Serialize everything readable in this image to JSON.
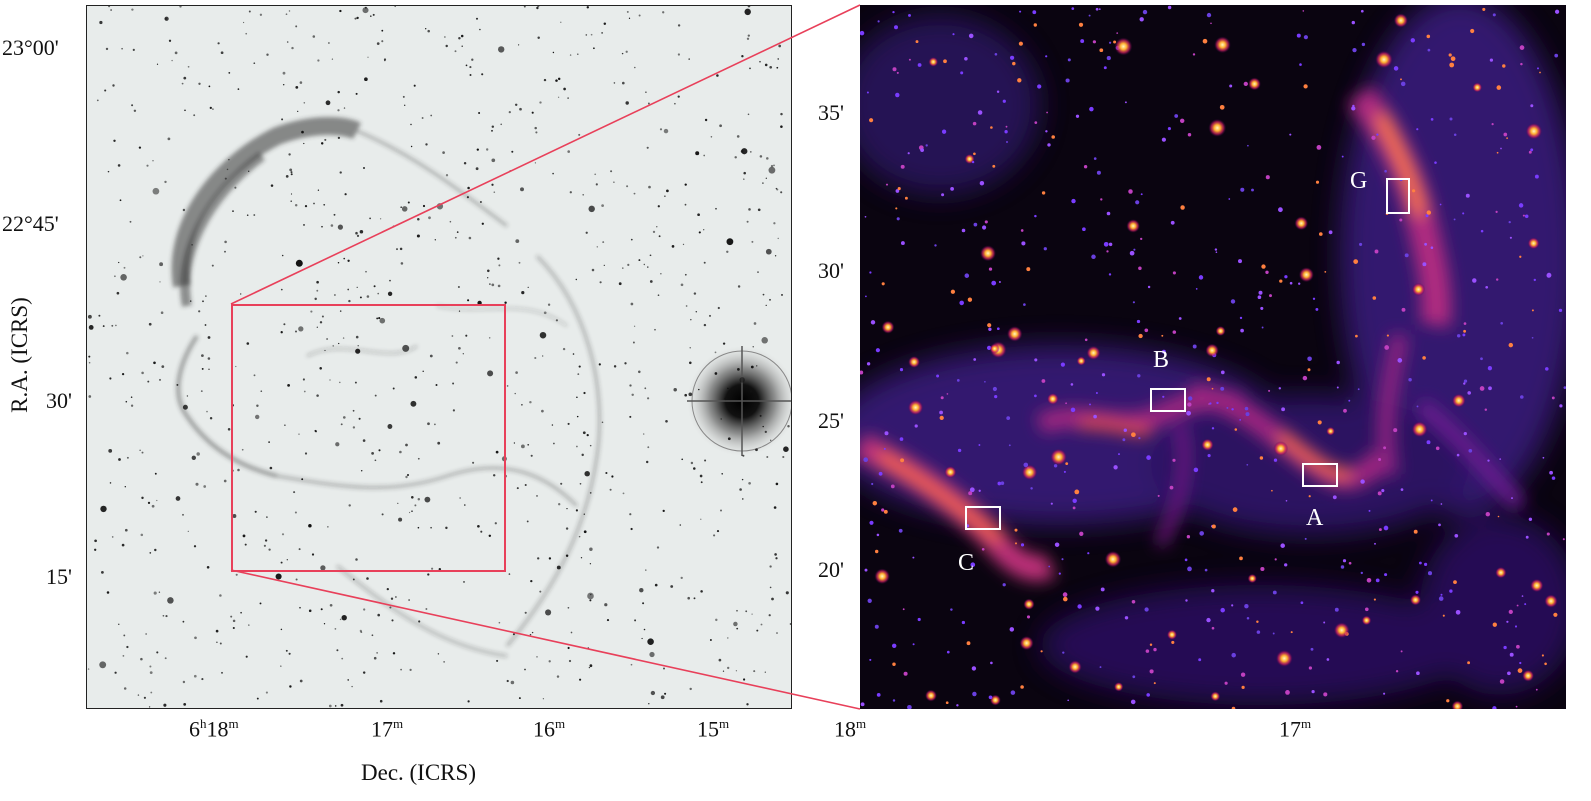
{
  "figure": {
    "left_panel": {
      "y_ticks": [
        "23°00'",
        "22°45'",
        "30'",
        "15'"
      ],
      "x_ticks": [
        {
          "main": "6",
          "sup1": "h",
          "main2": "18",
          "sup2": "m"
        },
        {
          "main": "17",
          "sup2": "m"
        },
        {
          "main": "16",
          "sup2": "m"
        },
        {
          "main": "15",
          "sup2": "m"
        }
      ],
      "x_title": "Dec. (ICRS)",
      "y_title": "R.A. (ICRS)"
    },
    "right_panel": {
      "y_ticks": [
        "35'",
        "30'",
        "25'",
        "20'"
      ],
      "x_ticks": [
        {
          "main": "18",
          "sup2": "m"
        },
        {
          "main": "17",
          "sup2": "m"
        }
      ],
      "regions": [
        {
          "label": "G"
        },
        {
          "label": "B"
        },
        {
          "label": "A"
        },
        {
          "label": "C"
        }
      ]
    },
    "colors": {
      "zoom_box": "#e8405a",
      "region_box": "#ffffff",
      "right_bg": "#0a0410",
      "left_bg": "#e8eceb"
    }
  }
}
